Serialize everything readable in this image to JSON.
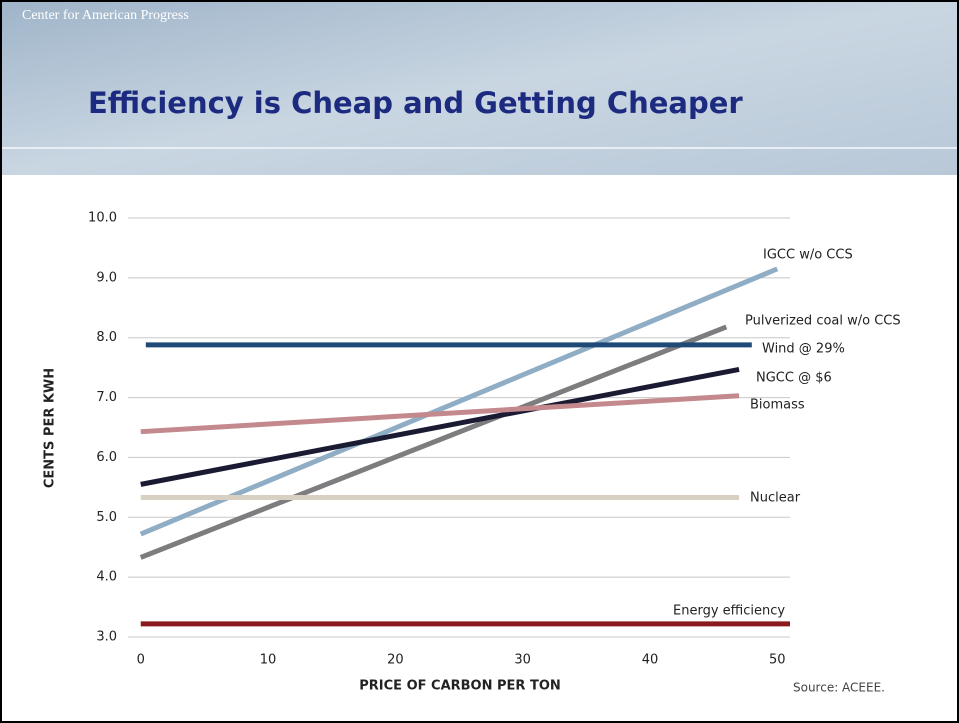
{
  "header": {
    "logo": "Center for American Progress",
    "title": "Efficiency is Cheap and Getting Cheaper"
  },
  "chart_data": {
    "type": "line",
    "xlabel": "PRICE OF CARBON PER TON",
    "ylabel": "CENTS PER KWH",
    "source": "Source: ACEEE.",
    "xlim": [
      -1,
      51
    ],
    "xticks": [
      0,
      10,
      20,
      30,
      40,
      50
    ],
    "ylim": [
      3,
      10
    ],
    "yticks": [
      {
        "value": 3,
        "label": "3.0"
      },
      {
        "value": 4,
        "label": "4.0"
      },
      {
        "value": 5,
        "label": "5.0"
      },
      {
        "value": 6,
        "label": "6.0"
      },
      {
        "value": 7,
        "label": "7.0"
      },
      {
        "value": 8,
        "label": "8.0"
      },
      {
        "value": 9,
        "label": "9.0"
      },
      {
        "value": 10,
        "label": "10.0"
      }
    ],
    "grid": true,
    "series": [
      {
        "name": "IGCC w/o CCS",
        "color": "#8fadc4",
        "x": [
          0,
          50
        ],
        "values": [
          4.72,
          9.15
        ]
      },
      {
        "name": "Pulverized coal w/o CCS",
        "color": "#7d7d7f",
        "x": [
          0,
          46
        ],
        "values": [
          4.33,
          8.18
        ]
      },
      {
        "name": "Wind @ 29%",
        "color": "#1f4a78",
        "x": [
          0.4,
          48
        ],
        "values": [
          7.88,
          7.88
        ]
      },
      {
        "name": "NGCC @ $6",
        "color": "#1a1a33",
        "x": [
          0,
          47
        ],
        "values": [
          5.55,
          7.47
        ]
      },
      {
        "name": "Biomass",
        "color": "#c4898d",
        "x": [
          0,
          47
        ],
        "values": [
          6.43,
          7.03
        ]
      },
      {
        "name": "Nuclear",
        "color": "#d8d0c2",
        "x": [
          0,
          47
        ],
        "values": [
          5.33,
          5.33
        ]
      },
      {
        "name": "Energy efficiency",
        "color": "#8a1a1f",
        "x": [
          0,
          51
        ],
        "values": [
          3.22,
          3.22
        ]
      }
    ]
  }
}
